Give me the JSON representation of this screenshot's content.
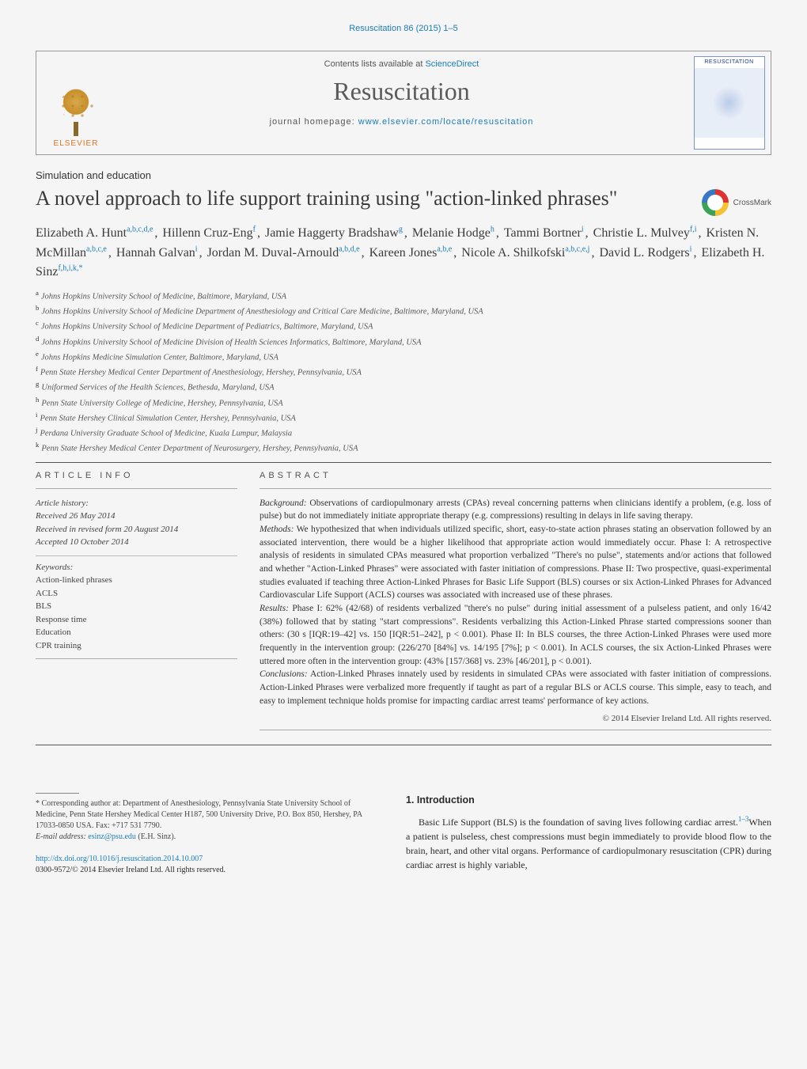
{
  "citation": "Resuscitation 86 (2015) 1–5",
  "header": {
    "contents_prefix": "Contents lists available at ",
    "contents_link": "ScienceDirect",
    "journal": "Resuscitation",
    "homepage_prefix": "journal homepage: ",
    "homepage_url": "www.elsevier.com/locate/resuscitation",
    "publisher": "ELSEVIER",
    "cover_title": "RESUSCITATION"
  },
  "article": {
    "section": "Simulation and education",
    "title": "A novel approach to life support training using \"action-linked phrases\"",
    "crossmark": "CrossMark"
  },
  "authors": [
    {
      "name": "Elizabeth A. Hunt",
      "aff": "a,b,c,d,e"
    },
    {
      "name": "Hillenn Cruz-Eng",
      "aff": "f"
    },
    {
      "name": "Jamie Haggerty Bradshaw",
      "aff": "g"
    },
    {
      "name": "Melanie Hodge",
      "aff": "h"
    },
    {
      "name": "Tammi Bortner",
      "aff": "i"
    },
    {
      "name": "Christie L. Mulvey",
      "aff": "f,i"
    },
    {
      "name": "Kristen N. McMillan",
      "aff": "a,b,c,e"
    },
    {
      "name": "Hannah Galvan",
      "aff": "i"
    },
    {
      "name": "Jordan M. Duval-Arnould",
      "aff": "a,b,d,e"
    },
    {
      "name": "Kareen Jones",
      "aff": "a,b,e"
    },
    {
      "name": "Nicole A. Shilkofski",
      "aff": "a,b,c,e,j"
    },
    {
      "name": "David L. Rodgers",
      "aff": "i"
    },
    {
      "name": "Elizabeth H. Sinz",
      "aff": "f,h,i,k,*",
      "corr": true
    }
  ],
  "affiliations": [
    {
      "key": "a",
      "text": "Johns Hopkins University School of Medicine, Baltimore, Maryland, USA"
    },
    {
      "key": "b",
      "text": "Johns Hopkins University School of Medicine Department of Anesthesiology and Critical Care Medicine, Baltimore, Maryland, USA"
    },
    {
      "key": "c",
      "text": "Johns Hopkins University School of Medicine Department of Pediatrics, Baltimore, Maryland, USA"
    },
    {
      "key": "d",
      "text": "Johns Hopkins University School of Medicine Division of Health Sciences Informatics, Baltimore, Maryland, USA"
    },
    {
      "key": "e",
      "text": "Johns Hopkins Medicine Simulation Center, Baltimore, Maryland, USA"
    },
    {
      "key": "f",
      "text": "Penn State Hershey Medical Center Department of Anesthesiology, Hershey, Pennsylvania, USA"
    },
    {
      "key": "g",
      "text": "Uniformed Services of the Health Sciences, Bethesda, Maryland, USA"
    },
    {
      "key": "h",
      "text": "Penn State University College of Medicine, Hershey, Pennsylvania, USA"
    },
    {
      "key": "i",
      "text": "Penn State Hershey Clinical Simulation Center, Hershey, Pennsylvania, USA"
    },
    {
      "key": "j",
      "text": "Perdana University Graduate School of Medicine, Kuala Lumpur, Malaysia"
    },
    {
      "key": "k",
      "text": "Penn State Hershey Medical Center Department of Neurosurgery, Hershey, Pennsylvania, USA"
    }
  ],
  "article_info": {
    "heading": "ARTICLE INFO",
    "history_label": "Article history:",
    "received": "Received 26 May 2014",
    "revised": "Received in revised form 20 August 2014",
    "accepted": "Accepted 10 October 2014",
    "keywords_label": "Keywords:",
    "keywords": [
      "Action-linked phrases",
      "ACLS",
      "BLS",
      "Response time",
      "Education",
      "CPR training"
    ]
  },
  "abstract": {
    "heading": "ABSTRACT",
    "background_label": "Background:",
    "background": "Observations of cardiopulmonary arrests (CPAs) reveal concerning patterns when clinicians identify a problem, (e.g. loss of pulse) but do not immediately initiate appropriate therapy (e.g. compressions) resulting in delays in life saving therapy.",
    "methods_label": "Methods:",
    "methods": "We hypothesized that when individuals utilized specific, short, easy-to-state action phrases stating an observation followed by an associated intervention, there would be a higher likelihood that appropriate action would immediately occur. Phase I: A retrospective analysis of residents in simulated CPAs measured what proportion verbalized \"There's no pulse\", statements and/or actions that followed and whether \"Action-Linked Phrases\" were associated with faster initiation of compressions. Phase II: Two prospective, quasi-experimental studies evaluated if teaching three Action-Linked Phrases for Basic Life Support (BLS) courses or six Action-Linked Phrases for Advanced Cardiovascular Life Support (ACLS) courses was associated with increased use of these phrases.",
    "results_label": "Results:",
    "results": "Phase I: 62% (42/68) of residents verbalized \"there's no pulse\" during initial assessment of a pulseless patient, and only 16/42 (38%) followed that by stating \"start compressions\". Residents verbalizing this Action-Linked Phrase started compressions sooner than others: (30 s [IQR:19–42] vs. 150 [IQR:51–242], p < 0.001). Phase II: In BLS courses, the three Action-Linked Phrases were used more frequently in the intervention group: (226/270 [84%] vs. 14/195 [7%]; p < 0.001). In ACLS courses, the six Action-Linked Phrases were uttered more often in the intervention group: (43% [157/368] vs. 23% [46/201], p < 0.001).",
    "conclusions_label": "Conclusions:",
    "conclusions": "Action-Linked Phrases innately used by residents in simulated CPAs were associated with faster initiation of compressions. Action-Linked Phrases were verbalized more frequently if taught as part of a regular BLS or ACLS course. This simple, easy to teach, and easy to implement technique holds promise for impacting cardiac arrest teams' performance of key actions.",
    "copyright": "© 2014 Elsevier Ireland Ltd. All rights reserved."
  },
  "footnote": {
    "corr_label": "* Corresponding author at:",
    "corr_text": " Department of Anesthesiology, Pennsylvania State University School of Medicine, Penn State Hershey Medical Center H187, 500 University Drive, P.O. Box 850, Hershey, PA 17033-0850 USA. Fax: +717 531 7790.",
    "email_label": "E-mail address: ",
    "email": "esinz@psu.edu",
    "email_tail": " (E.H. Sinz).",
    "doi_url": "http://dx.doi.org/10.1016/j.resuscitation.2014.10.007",
    "issn_line": "0300-9572/© 2014 Elsevier Ireland Ltd. All rights reserved."
  },
  "intro": {
    "heading": "1. Introduction",
    "p1_a": "Basic Life Support (BLS) is the foundation of saving lives following cardiac arrest.",
    "p1_ref": "1–3",
    "p1_b": "When a patient is pulseless, chest compressions must begin immediately to provide blood flow to the brain, heart, and other vital organs. Performance of cardiopulmonary resuscitation (CPR) during cardiac arrest is highly variable,"
  },
  "colors": {
    "link": "#1a7db8",
    "text": "#2b2b2b",
    "rule": "#555555",
    "publisher": "#e8731f"
  }
}
